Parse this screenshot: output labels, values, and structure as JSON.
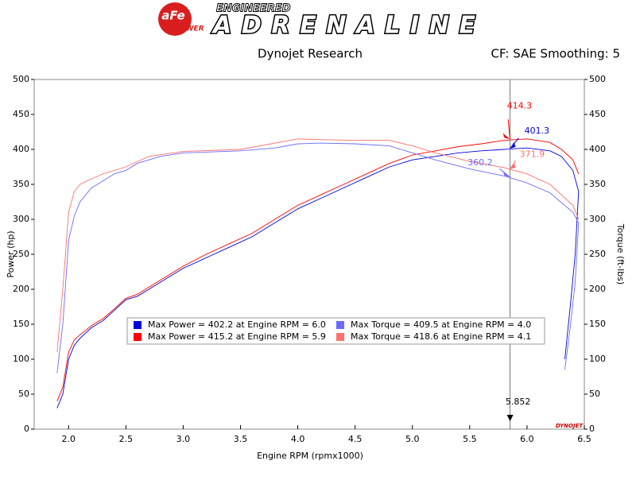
{
  "header": {
    "logo": "aFe",
    "logo_sub": "POWER",
    "brand_top": "ENGINEERED",
    "brand": "ADRENALINE"
  },
  "chart_data": {
    "type": "line",
    "title": "Dynojet Research",
    "subtitle": "CF: SAE Smoothing: 5",
    "x_label": "Engine RPM (rpmx1000)",
    "y_label": "Power (hp)",
    "y2_label": "Torque (ft-lbs)",
    "watermark": "DYNOJET",
    "xlim": [
      1.7,
      6.5
    ],
    "ylim": [
      0,
      500
    ],
    "y2lim": [
      0,
      500
    ],
    "xticks": [
      {
        "value": 2,
        "label": "2.0"
      },
      {
        "value": 2.5,
        "label": "2.5"
      },
      {
        "value": 3,
        "label": "3.0"
      },
      {
        "value": 3.5,
        "label": "3.5"
      },
      {
        "value": 4,
        "label": "4.0"
      },
      {
        "value": 4.5,
        "label": "4.5"
      },
      {
        "value": 5,
        "label": "5.0"
      },
      {
        "value": 5.5,
        "label": "5.5"
      },
      {
        "value": 6,
        "label": "6.0"
      },
      {
        "value": 6.5,
        "label": "6.5"
      }
    ],
    "yticks": [
      0,
      50,
      100,
      150,
      200,
      250,
      300,
      350,
      400,
      450,
      500
    ],
    "y2ticks": [
      0,
      50,
      100,
      150,
      200,
      250,
      300,
      350,
      400,
      450,
      500
    ],
    "series": [
      {
        "name": "Max Power = 402.2 at Engine RPM = 6.0",
        "color": "#0000dd",
        "x": [
          1.9,
          1.95,
          2.0,
          2.05,
          2.1,
          2.2,
          2.3,
          2.4,
          2.5,
          2.6,
          2.7,
          2.8,
          2.9,
          3.0,
          3.2,
          3.4,
          3.6,
          3.8,
          4.0,
          4.2,
          4.4,
          4.6,
          4.8,
          5.0,
          5.2,
          5.4,
          5.6,
          5.8,
          6.0,
          6.2,
          6.3,
          6.4,
          6.45,
          6.42,
          6.38,
          6.33
        ],
        "values": [
          30,
          50,
          100,
          120,
          130,
          145,
          155,
          170,
          185,
          190,
          200,
          210,
          220,
          230,
          245,
          260,
          275,
          295,
          315,
          330,
          345,
          360,
          375,
          385,
          390,
          395,
          398,
          400,
          402,
          398,
          390,
          370,
          340,
          250,
          180,
          100
        ]
      },
      {
        "name": "Max Power = 415.2 at Engine RPM = 5.9",
        "color": "#ff0000",
        "x": [
          1.9,
          1.95,
          2.0,
          2.05,
          2.1,
          2.2,
          2.3,
          2.4,
          2.5,
          2.6,
          2.7,
          2.8,
          2.9,
          3.0,
          3.2,
          3.4,
          3.6,
          3.8,
          4.0,
          4.2,
          4.4,
          4.6,
          4.8,
          5.0,
          5.2,
          5.4,
          5.6,
          5.8,
          6.0,
          6.2,
          6.3,
          6.4,
          6.45
        ],
        "values": [
          40,
          60,
          110,
          128,
          135,
          148,
          158,
          172,
          187,
          193,
          203,
          213,
          223,
          233,
          250,
          265,
          280,
          300,
          320,
          335,
          350,
          365,
          380,
          392,
          398,
          404,
          408,
          413,
          415,
          410,
          400,
          385,
          365
        ]
      },
      {
        "name": "Max Torque = 409.5 at Engine RPM = 4.0",
        "color": "#6a6aff",
        "axis": "y2",
        "x": [
          1.9,
          1.95,
          2.0,
          2.05,
          2.1,
          2.2,
          2.3,
          2.4,
          2.5,
          2.6,
          2.7,
          2.8,
          3.0,
          3.5,
          3.8,
          4.0,
          4.2,
          4.5,
          4.8,
          5.0,
          5.2,
          5.5,
          5.8,
          6.0,
          6.2,
          6.4,
          6.45,
          6.42,
          6.38,
          6.33
        ],
        "values": [
          80,
          150,
          270,
          305,
          325,
          345,
          355,
          365,
          370,
          380,
          385,
          390,
          395,
          398,
          402,
          408,
          409,
          408,
          405,
          395,
          385,
          372,
          362,
          352,
          338,
          310,
          295,
          210,
          150,
          85
        ]
      },
      {
        "name": "Max Torque = 418.6 at Engine RPM = 4.1",
        "color": "#ff7070",
        "axis": "y2",
        "x": [
          1.9,
          1.95,
          2.0,
          2.05,
          2.1,
          2.2,
          2.3,
          2.5,
          2.7,
          3.0,
          3.5,
          4.0,
          4.2,
          4.5,
          4.8,
          5.0,
          5.2,
          5.5,
          5.8,
          6.0,
          6.2,
          6.4,
          6.45
        ],
        "values": [
          110,
          200,
          310,
          340,
          350,
          358,
          365,
          375,
          390,
          397,
          400,
          415,
          414,
          413,
          413,
          405,
          395,
          383,
          374,
          365,
          350,
          320,
          300
        ]
      }
    ],
    "cursor_x": 5.852,
    "cursor_values": [
      401.3,
      414.3,
      360.2,
      371.9
    ]
  }
}
